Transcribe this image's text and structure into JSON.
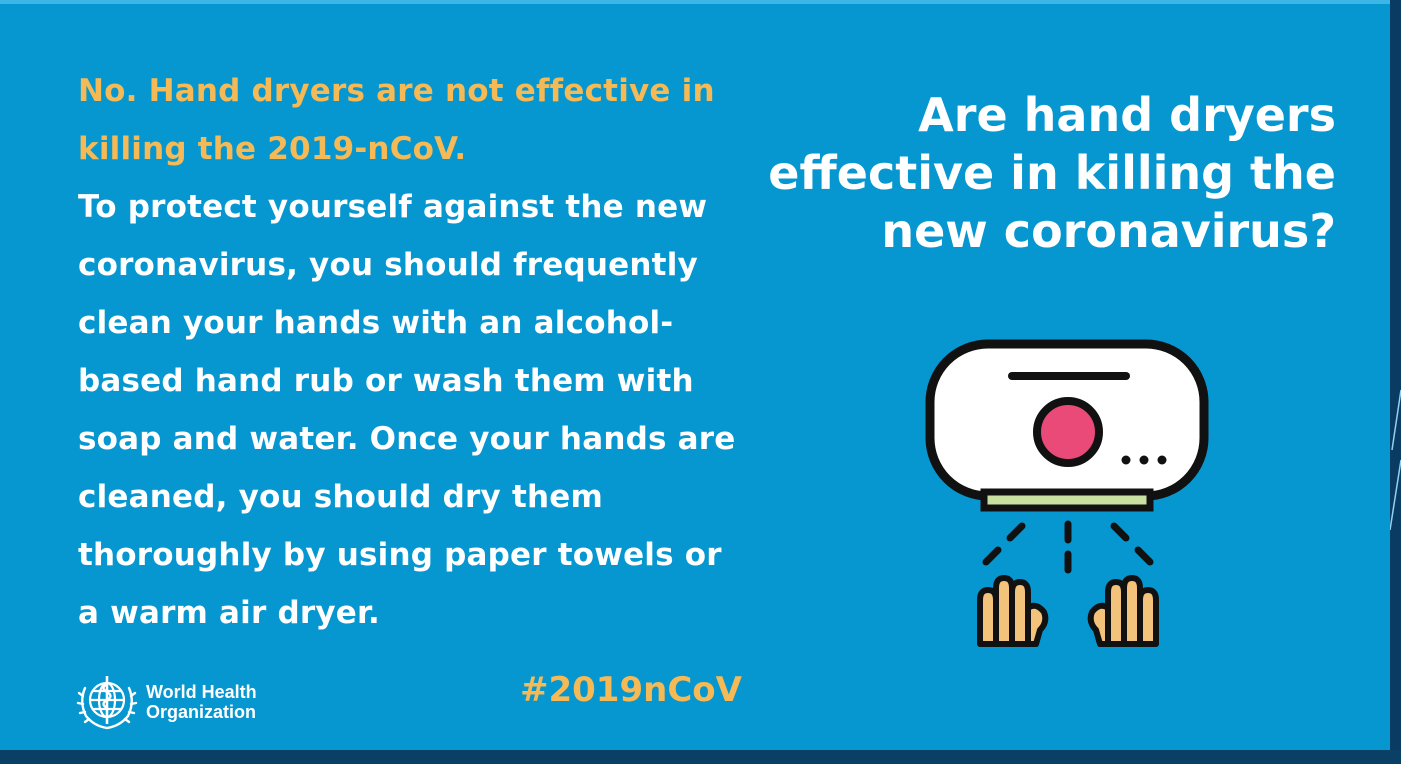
{
  "answer": {
    "lead": "No. Hand dryers are not effective in killing the 2019-nCoV.",
    "body": "To protect yourself against the new coronavirus, you should frequently clean your hands with an alcohol-based hand rub or wash them with soap and water. Once your hands are cleaned, you should dry them thoroughly by using paper towels or a warm air dryer."
  },
  "question": "Are hand dryers effective in killing the new coronavirus?",
  "hashtag": "#2019nCoV",
  "logo": {
    "text": "World Health\nOrganization"
  },
  "illustration": {
    "icon": "hand-dryer-icon",
    "button_color": "#ea4a78",
    "hands_color": "#f3c37c",
    "nozzle_color": "#c9e1a0"
  },
  "colors": {
    "background": "#0797d0",
    "accent": "#f5b955",
    "text": "#ffffff"
  }
}
